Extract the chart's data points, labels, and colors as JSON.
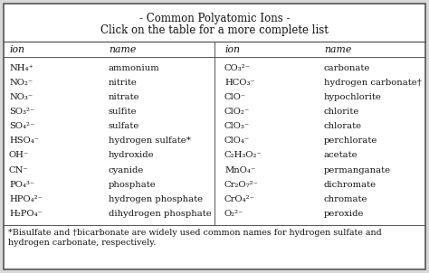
{
  "title_line1": "- Common Polyatomic Ions -",
  "title_line2": "Click on the table for a more complete list",
  "header": [
    "ion",
    "name",
    "ion",
    "name"
  ],
  "left_ions": [
    "NH₄⁺",
    "NO₂⁻",
    "NO₃⁻",
    "SO₃²⁻",
    "SO₄²⁻",
    "HSO₄⁻",
    "OH⁻",
    "CN⁻",
    "PO₄³⁻",
    "HPO₄²⁻",
    "H₂PO₄⁻"
  ],
  "left_names": [
    "ammonium",
    "nitrite",
    "nitrate",
    "sulfite",
    "sulfate",
    "hydrogen sulfate*",
    "hydroxide",
    "cyanide",
    "phosphate",
    "hydrogen phosphate",
    "dihydrogen phosphate"
  ],
  "right_ions": [
    "CO₃²⁻",
    "HCO₃⁻",
    "ClO⁻",
    "ClO₂⁻",
    "ClO₃⁻",
    "ClO₄⁻",
    "C₂H₃O₂⁻",
    "MnO₄⁻",
    "Cr₂O₇²⁻",
    "CrO₄²⁻",
    "O₂²⁻"
  ],
  "right_names": [
    "carbonate",
    "hydrogen carbonate†",
    "hypochlorite",
    "chlorite",
    "chlorate",
    "perchlorate",
    "acetate",
    "permanganate",
    "dichromate",
    "chromate",
    "peroxide"
  ],
  "footnote_line1": "*Bisulfate and †bicarbonate are widely used common names for hydrogen sulfate and",
  "footnote_line2": "hydrogen carbonate, respectively.",
  "bg_color": "#d8d8d8",
  "box_color": "#ffffff",
  "border_color": "#555555",
  "text_color": "#111111",
  "font_family": "DejaVu Serif",
  "title_fontsize": 8.5,
  "header_fontsize": 7.8,
  "data_fontsize": 7.2,
  "footnote_fontsize": 6.8
}
